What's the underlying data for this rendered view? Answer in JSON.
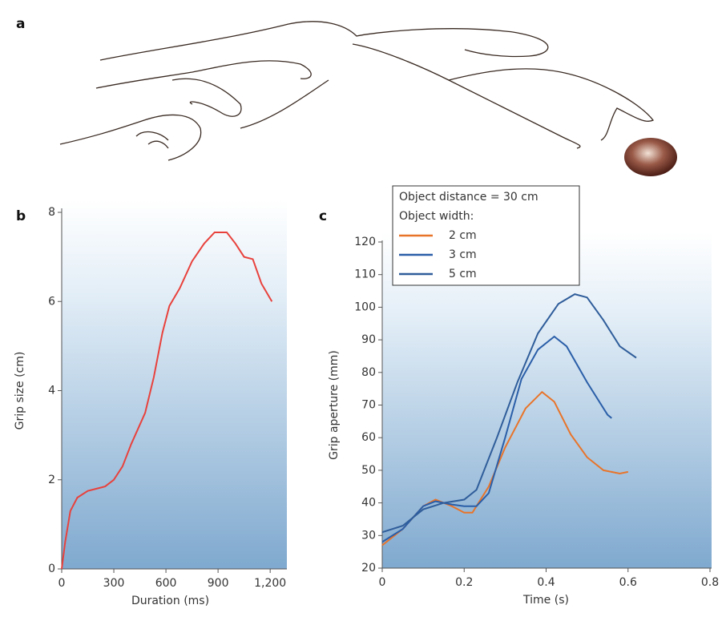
{
  "panel_labels": [
    "a",
    "b",
    "c"
  ],
  "chart_data": [
    {
      "type": "line",
      "xlabel": "Duration (ms)",
      "ylabel": "Grip size (cm)",
      "x": [
        0,
        20,
        50,
        90,
        150,
        200,
        250,
        300,
        350,
        400,
        480,
        530,
        580,
        620,
        680,
        750,
        820,
        880,
        950,
        1000,
        1050,
        1100,
        1150,
        1210
      ],
      "series": [
        {
          "color": "#e8413c",
          "values": [
            0,
            0.6,
            1.3,
            1.6,
            1.75,
            1.8,
            1.85,
            2.0,
            2.3,
            2.8,
            3.5,
            4.3,
            5.3,
            5.9,
            6.3,
            6.9,
            7.3,
            7.55,
            7.55,
            7.3,
            7.0,
            6.95,
            6.4,
            6.0
          ]
        }
      ],
      "xlim": [
        0,
        1250
      ],
      "ylim": [
        0,
        8
      ],
      "xticks": [
        0,
        300,
        600,
        900,
        {
          "value": 1200,
          "label": "1,200"
        }
      ],
      "yticks": [
        0,
        2,
        4,
        6,
        8
      ]
    },
    {
      "type": "line",
      "xlabel": "Time (s)",
      "ylabel": "Grip aperture (mm)",
      "legend_title": [
        "Object distance = 30 cm",
        "Object width:"
      ],
      "series": [
        {
          "name": "2 cm",
          "color": "#e8742a",
          "x": [
            0,
            0.05,
            0.1,
            0.13,
            0.17,
            0.2,
            0.22,
            0.26,
            0.3,
            0.35,
            0.39,
            0.42,
            0.46,
            0.5,
            0.54,
            0.58,
            0.6
          ],
          "values": [
            27,
            32,
            39,
            41,
            39,
            37,
            37,
            45,
            57,
            69,
            74,
            71,
            61,
            54,
            50,
            49,
            49.5
          ]
        },
        {
          "name": "3 cm",
          "color": "#2a5ea8",
          "x": [
            0,
            0.05,
            0.1,
            0.13,
            0.17,
            0.2,
            0.23,
            0.26,
            0.3,
            0.34,
            0.38,
            0.42,
            0.45,
            0.5,
            0.55,
            0.56
          ],
          "values": [
            28,
            32,
            39,
            40.5,
            39.5,
            39,
            39,
            43,
            60,
            78,
            87,
            91,
            88,
            77,
            67,
            66
          ]
        },
        {
          "name": "5 cm",
          "color": "#2f5d9a",
          "x": [
            0,
            0.05,
            0.1,
            0.15,
            0.2,
            0.23,
            0.28,
            0.33,
            0.38,
            0.43,
            0.47,
            0.5,
            0.54,
            0.58,
            0.62
          ],
          "values": [
            31,
            33,
            38,
            40,
            41,
            44,
            60,
            77,
            92,
            101,
            104,
            103,
            96,
            88,
            84.5
          ]
        }
      ],
      "xlim": [
        0,
        0.8
      ],
      "ylim": [
        20,
        120
      ],
      "xticks": [
        0,
        0.2,
        0.4,
        0.6,
        0.8
      ],
      "yticks": [
        20,
        30,
        40,
        50,
        60,
        70,
        80,
        90,
        100,
        110,
        120
      ]
    }
  ]
}
